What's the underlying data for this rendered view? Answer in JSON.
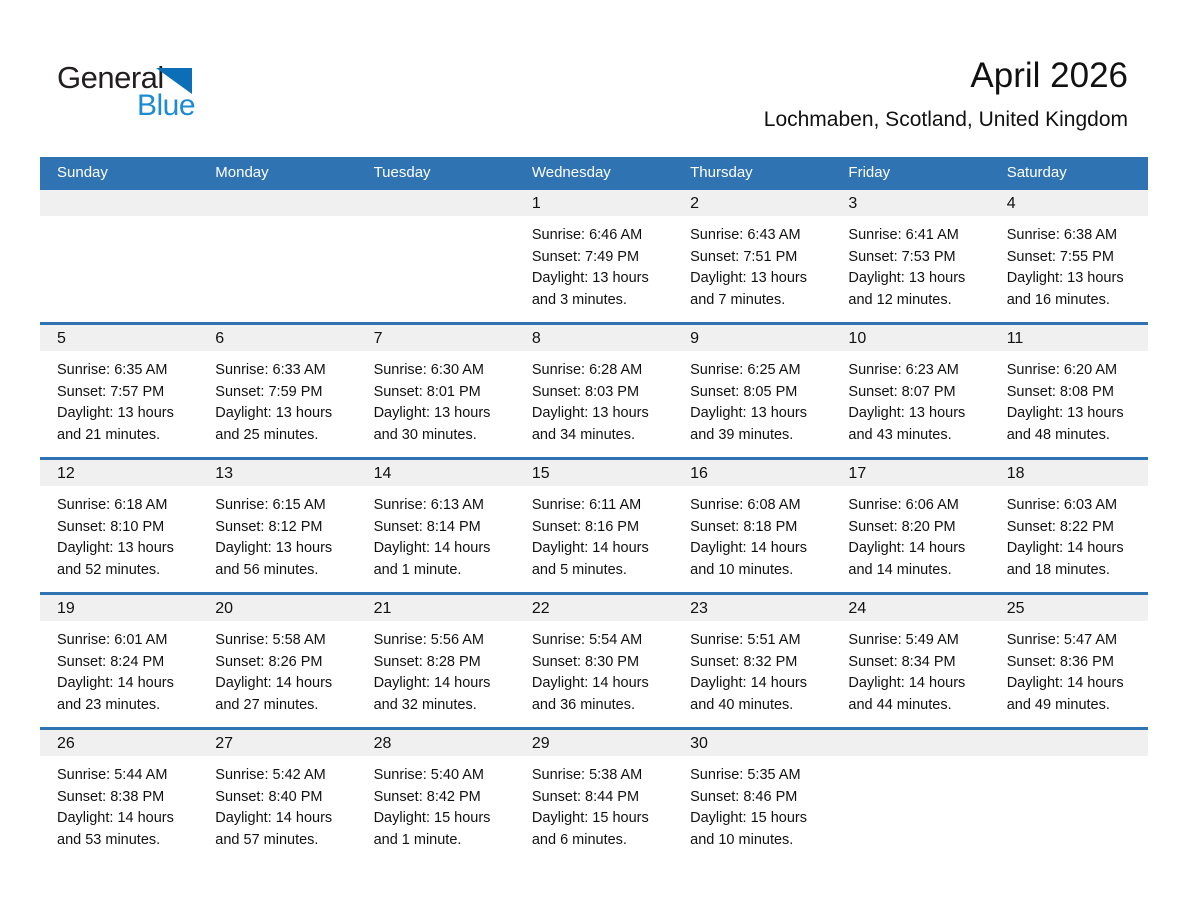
{
  "logo": {
    "line1": "General",
    "line2": "Blue"
  },
  "header": {
    "title": "April 2026",
    "location": "Lochmaben, Scotland, United Kingdom"
  },
  "colors": {
    "header_blue": "#2F73B2",
    "row_line_blue": "#2F73B2",
    "strip_gray": "#F0F0F0",
    "logo_black": "#221E1F",
    "logo_blue": "#1C8BD0",
    "logo_triangle_blue": "#0D6EB8",
    "body_text": "#1A1A1A"
  },
  "calendar": {
    "day_headers": [
      "Sunday",
      "Monday",
      "Tuesday",
      "Wednesday",
      "Thursday",
      "Friday",
      "Saturday"
    ],
    "labels": {
      "sunrise": "Sunrise:",
      "sunset": "Sunset:",
      "daylight": "Daylight:"
    },
    "weeks": [
      [
        null,
        null,
        null,
        {
          "day": "1",
          "sunrise": "6:46 AM",
          "sunset": "7:49 PM",
          "daylight": "13 hours and 3 minutes."
        },
        {
          "day": "2",
          "sunrise": "6:43 AM",
          "sunset": "7:51 PM",
          "daylight": "13 hours and 7 minutes."
        },
        {
          "day": "3",
          "sunrise": "6:41 AM",
          "sunset": "7:53 PM",
          "daylight": "13 hours and 12 minutes."
        },
        {
          "day": "4",
          "sunrise": "6:38 AM",
          "sunset": "7:55 PM",
          "daylight": "13 hours and 16 minutes."
        }
      ],
      [
        {
          "day": "5",
          "sunrise": "6:35 AM",
          "sunset": "7:57 PM",
          "daylight": "13 hours and 21 minutes."
        },
        {
          "day": "6",
          "sunrise": "6:33 AM",
          "sunset": "7:59 PM",
          "daylight": "13 hours and 25 minutes."
        },
        {
          "day": "7",
          "sunrise": "6:30 AM",
          "sunset": "8:01 PM",
          "daylight": "13 hours and 30 minutes."
        },
        {
          "day": "8",
          "sunrise": "6:28 AM",
          "sunset": "8:03 PM",
          "daylight": "13 hours and 34 minutes."
        },
        {
          "day": "9",
          "sunrise": "6:25 AM",
          "sunset": "8:05 PM",
          "daylight": "13 hours and 39 minutes."
        },
        {
          "day": "10",
          "sunrise": "6:23 AM",
          "sunset": "8:07 PM",
          "daylight": "13 hours and 43 minutes."
        },
        {
          "day": "11",
          "sunrise": "6:20 AM",
          "sunset": "8:08 PM",
          "daylight": "13 hours and 48 minutes."
        }
      ],
      [
        {
          "day": "12",
          "sunrise": "6:18 AM",
          "sunset": "8:10 PM",
          "daylight": "13 hours and 52 minutes."
        },
        {
          "day": "13",
          "sunrise": "6:15 AM",
          "sunset": "8:12 PM",
          "daylight": "13 hours and 56 minutes."
        },
        {
          "day": "14",
          "sunrise": "6:13 AM",
          "sunset": "8:14 PM",
          "daylight": "14 hours and 1 minute."
        },
        {
          "day": "15",
          "sunrise": "6:11 AM",
          "sunset": "8:16 PM",
          "daylight": "14 hours and 5 minutes."
        },
        {
          "day": "16",
          "sunrise": "6:08 AM",
          "sunset": "8:18 PM",
          "daylight": "14 hours and 10 minutes."
        },
        {
          "day": "17",
          "sunrise": "6:06 AM",
          "sunset": "8:20 PM",
          "daylight": "14 hours and 14 minutes."
        },
        {
          "day": "18",
          "sunrise": "6:03 AM",
          "sunset": "8:22 PM",
          "daylight": "14 hours and 18 minutes."
        }
      ],
      [
        {
          "day": "19",
          "sunrise": "6:01 AM",
          "sunset": "8:24 PM",
          "daylight": "14 hours and 23 minutes."
        },
        {
          "day": "20",
          "sunrise": "5:58 AM",
          "sunset": "8:26 PM",
          "daylight": "14 hours and 27 minutes."
        },
        {
          "day": "21",
          "sunrise": "5:56 AM",
          "sunset": "8:28 PM",
          "daylight": "14 hours and 32 minutes."
        },
        {
          "day": "22",
          "sunrise": "5:54 AM",
          "sunset": "8:30 PM",
          "daylight": "14 hours and 36 minutes."
        },
        {
          "day": "23",
          "sunrise": "5:51 AM",
          "sunset": "8:32 PM",
          "daylight": "14 hours and 40 minutes."
        },
        {
          "day": "24",
          "sunrise": "5:49 AM",
          "sunset": "8:34 PM",
          "daylight": "14 hours and 44 minutes."
        },
        {
          "day": "25",
          "sunrise": "5:47 AM",
          "sunset": "8:36 PM",
          "daylight": "14 hours and 49 minutes."
        }
      ],
      [
        {
          "day": "26",
          "sunrise": "5:44 AM",
          "sunset": "8:38 PM",
          "daylight": "14 hours and 53 minutes."
        },
        {
          "day": "27",
          "sunrise": "5:42 AM",
          "sunset": "8:40 PM",
          "daylight": "14 hours and 57 minutes."
        },
        {
          "day": "28",
          "sunrise": "5:40 AM",
          "sunset": "8:42 PM",
          "daylight": "15 hours and 1 minute."
        },
        {
          "day": "29",
          "sunrise": "5:38 AM",
          "sunset": "8:44 PM",
          "daylight": "15 hours and 6 minutes."
        },
        {
          "day": "30",
          "sunrise": "5:35 AM",
          "sunset": "8:46 PM",
          "daylight": "15 hours and 10 minutes."
        },
        null,
        null
      ]
    ]
  }
}
